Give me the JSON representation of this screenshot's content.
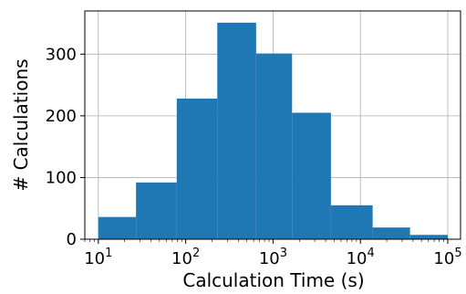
{
  "chart_data": {
    "type": "bar",
    "title": "",
    "xlabel": "Calculation Time (s)",
    "ylabel": "# Calculations",
    "x_scale": "log",
    "xlim": [
      7,
      140000
    ],
    "ylim": [
      0,
      370
    ],
    "grid": true,
    "bar_color": "#1f77b4",
    "bins": [
      {
        "x_start": 10,
        "x_end": 27,
        "value": 36
      },
      {
        "x_start": 27,
        "x_end": 79,
        "value": 92
      },
      {
        "x_start": 79,
        "x_end": 230,
        "value": 228
      },
      {
        "x_start": 230,
        "x_end": 640,
        "value": 351
      },
      {
        "x_start": 640,
        "x_end": 1650,
        "value": 301
      },
      {
        "x_start": 1650,
        "x_end": 4600,
        "value": 205
      },
      {
        "x_start": 4600,
        "x_end": 13800,
        "value": 55
      },
      {
        "x_start": 13800,
        "x_end": 37000,
        "value": 19
      },
      {
        "x_start": 37000,
        "x_end": 100000,
        "value": 7
      }
    ],
    "y_ticks": [
      {
        "value": 0,
        "label": "0"
      },
      {
        "value": 100,
        "label": "100"
      },
      {
        "value": 200,
        "label": "200"
      },
      {
        "value": 300,
        "label": "300"
      }
    ],
    "x_ticks": [
      {
        "value": 10,
        "base": "10",
        "exp": "1"
      },
      {
        "value": 100,
        "base": "10",
        "exp": "2"
      },
      {
        "value": 1000,
        "base": "10",
        "exp": "3"
      },
      {
        "value": 10000,
        "base": "10",
        "exp": "4"
      },
      {
        "value": 100000,
        "base": "10",
        "exp": "5"
      }
    ]
  }
}
